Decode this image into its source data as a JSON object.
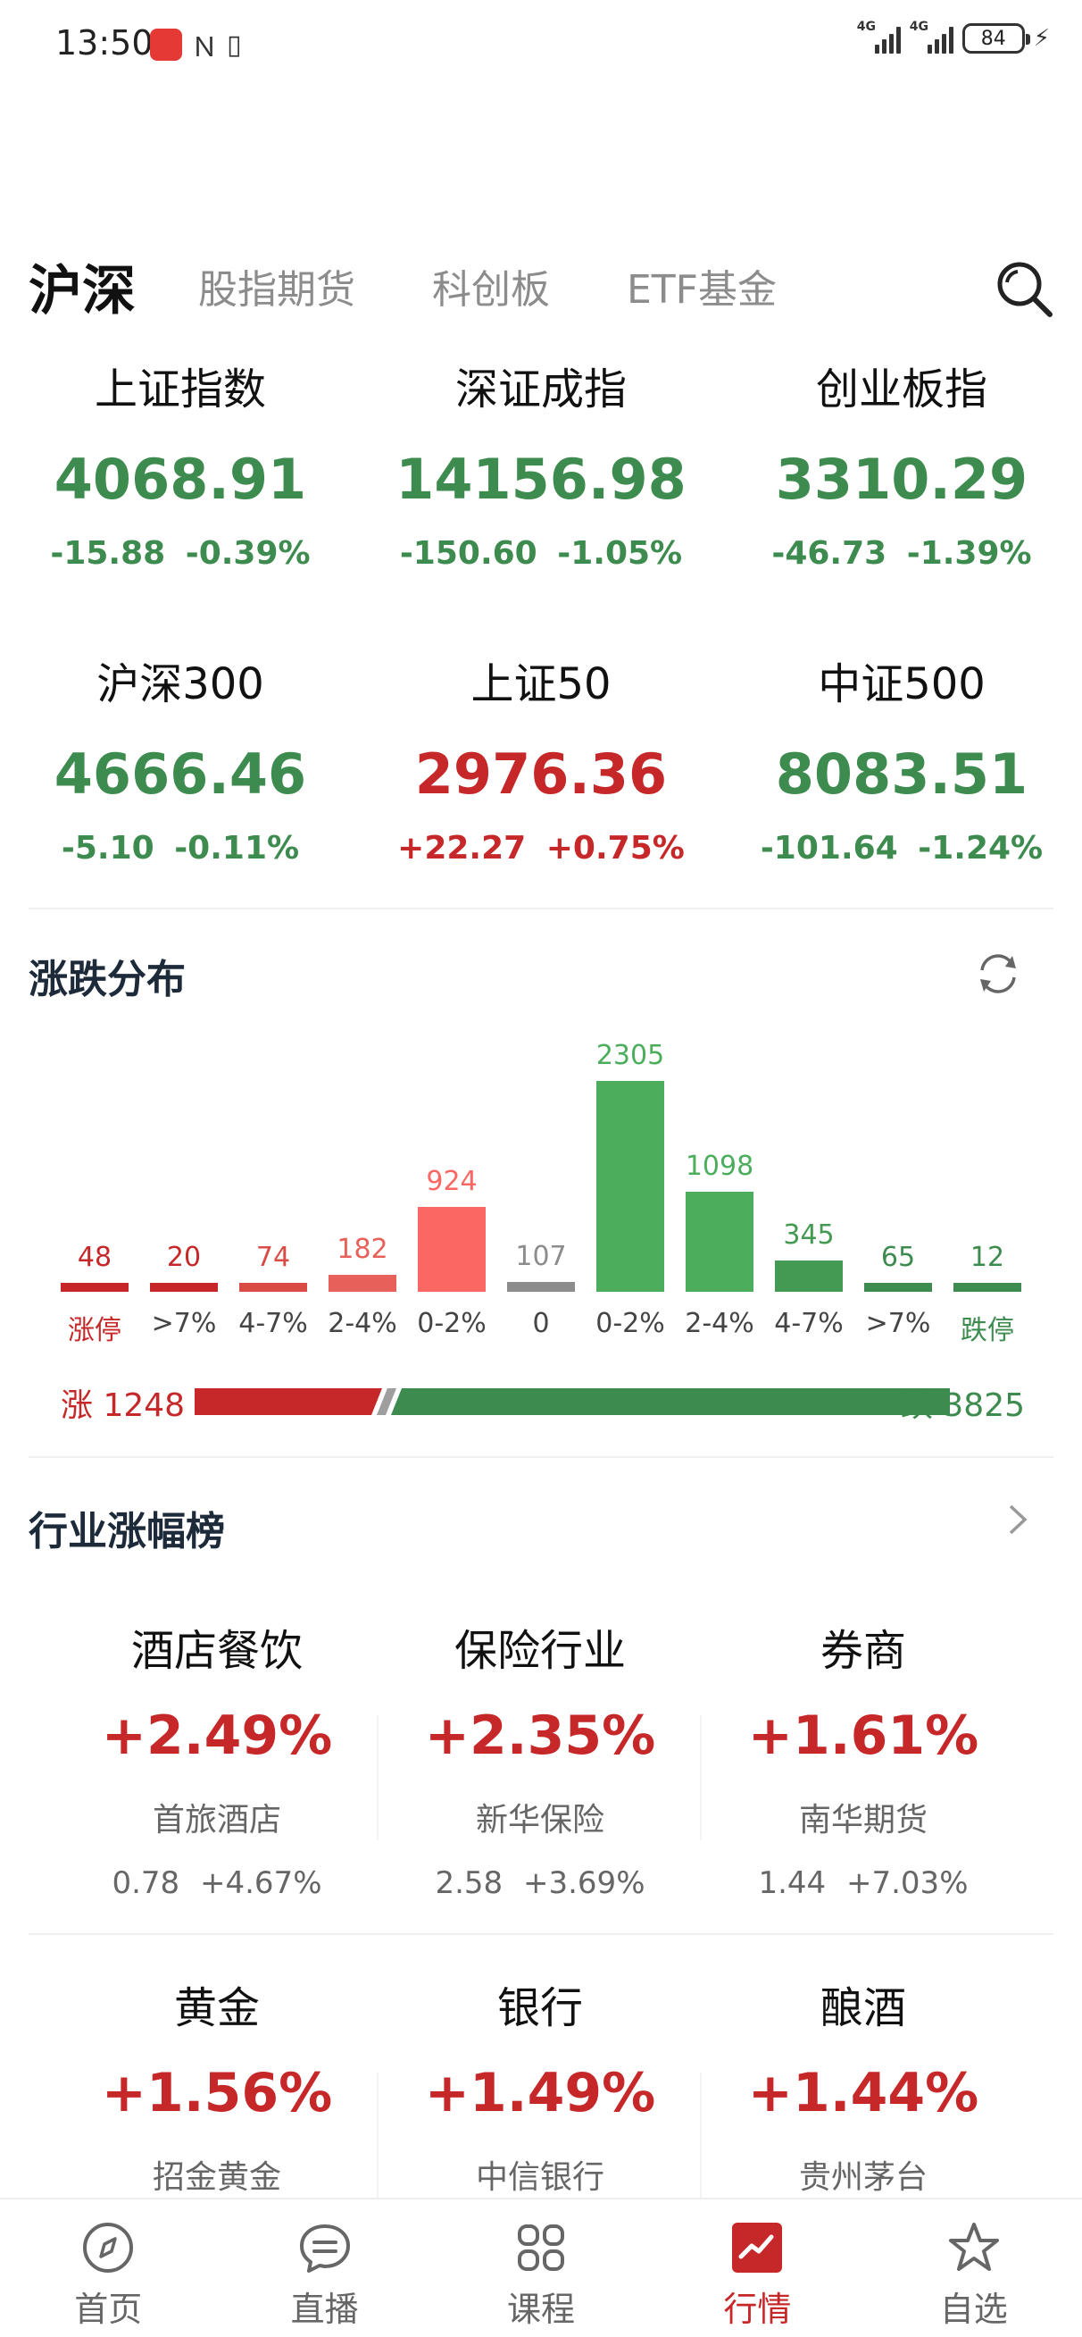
{
  "status_bar": {
    "time": "13:50",
    "net1": "4G",
    "net2": "4G",
    "battery": "84"
  },
  "tabs": [
    {
      "label": "沪深"
    },
    {
      "label": "股指期货"
    },
    {
      "label": "科创板"
    },
    {
      "label": "ETF基金"
    }
  ],
  "indices": [
    {
      "name": "上证指数",
      "value": "4068.91",
      "change": "-15.88",
      "pct": "-0.39%",
      "trend": "down"
    },
    {
      "name": "深证成指",
      "value": "14156.98",
      "change": "-150.60",
      "pct": "-1.05%",
      "trend": "down"
    },
    {
      "name": "创业板指",
      "value": "3310.29",
      "change": "-46.73",
      "pct": "-1.39%",
      "trend": "down"
    },
    {
      "name": "沪深300",
      "value": "4666.46",
      "change": "-5.10",
      "pct": "-0.11%",
      "trend": "down"
    },
    {
      "name": "上证50",
      "value": "2976.36",
      "change": "+22.27",
      "pct": "+0.75%",
      "trend": "up"
    },
    {
      "name": "中证500",
      "value": "8083.51",
      "change": "-101.64",
      "pct": "-1.24%",
      "trend": "down"
    }
  ],
  "distribution": {
    "title": "涨跌分布",
    "max": 2305,
    "columns": [
      {
        "label": "涨停",
        "count": 48,
        "color": "#c6282a"
      },
      {
        "label": ">7%",
        "count": 20,
        "color": "#c6282a"
      },
      {
        "label": "4-7%",
        "count": 74,
        "color": "#d94b45"
      },
      {
        "label": "2-4%",
        "count": 182,
        "color": "#e8605a"
      },
      {
        "label": "0-2%",
        "count": 924,
        "color": "#fb6863"
      },
      {
        "label": "0",
        "count": 107,
        "color": "#8c8c8c"
      },
      {
        "label": "0-2%",
        "count": 2305,
        "color": "#4cae5c"
      },
      {
        "label": "2-4%",
        "count": 1098,
        "color": "#4cae5c"
      },
      {
        "label": "4-7%",
        "count": 345,
        "color": "#449a52"
      },
      {
        "label": ">7%",
        "count": 65,
        "color": "#3d8b4f"
      },
      {
        "label": "跌停",
        "count": 12,
        "color": "#3d8b4f"
      }
    ],
    "up_label": "涨 1248",
    "down_label": "跌 3825",
    "up_count": 1248,
    "down_count": 3825
  },
  "industry": {
    "title": "行业涨幅榜",
    "items": [
      {
        "name": "酒店餐饮",
        "pct": "+2.49%",
        "stock": "首旅酒店",
        "price": "0.78",
        "stock_pct": "+4.67%"
      },
      {
        "name": "保险行业",
        "pct": "+2.35%",
        "stock": "新华保险",
        "price": "2.58",
        "stock_pct": "+3.69%"
      },
      {
        "name": "券商",
        "pct": "+1.61%",
        "stock": "南华期货",
        "price": "1.44",
        "stock_pct": "+7.03%"
      },
      {
        "name": "黄金",
        "pct": "+1.56%",
        "stock": "招金黄金",
        "price": "",
        "stock_pct": ""
      },
      {
        "name": "银行",
        "pct": "+1.49%",
        "stock": "中信银行",
        "price": "",
        "stock_pct": ""
      },
      {
        "name": "酿酒",
        "pct": "+1.44%",
        "stock": "贵州茅台",
        "price": "",
        "stock_pct": ""
      }
    ]
  },
  "bottom_nav": [
    {
      "label": "首页",
      "icon": "compass-icon"
    },
    {
      "label": "直播",
      "icon": "chat-bubble-icon"
    },
    {
      "label": "课程",
      "icon": "grid-clover-icon"
    },
    {
      "label": "行情",
      "icon": "chart-line-icon"
    },
    {
      "label": "自选",
      "icon": "star-icon"
    }
  ],
  "colors": {
    "up": "#c6282a",
    "down": "#3d8b4f",
    "tab_inactive": "#8c8c8c"
  }
}
